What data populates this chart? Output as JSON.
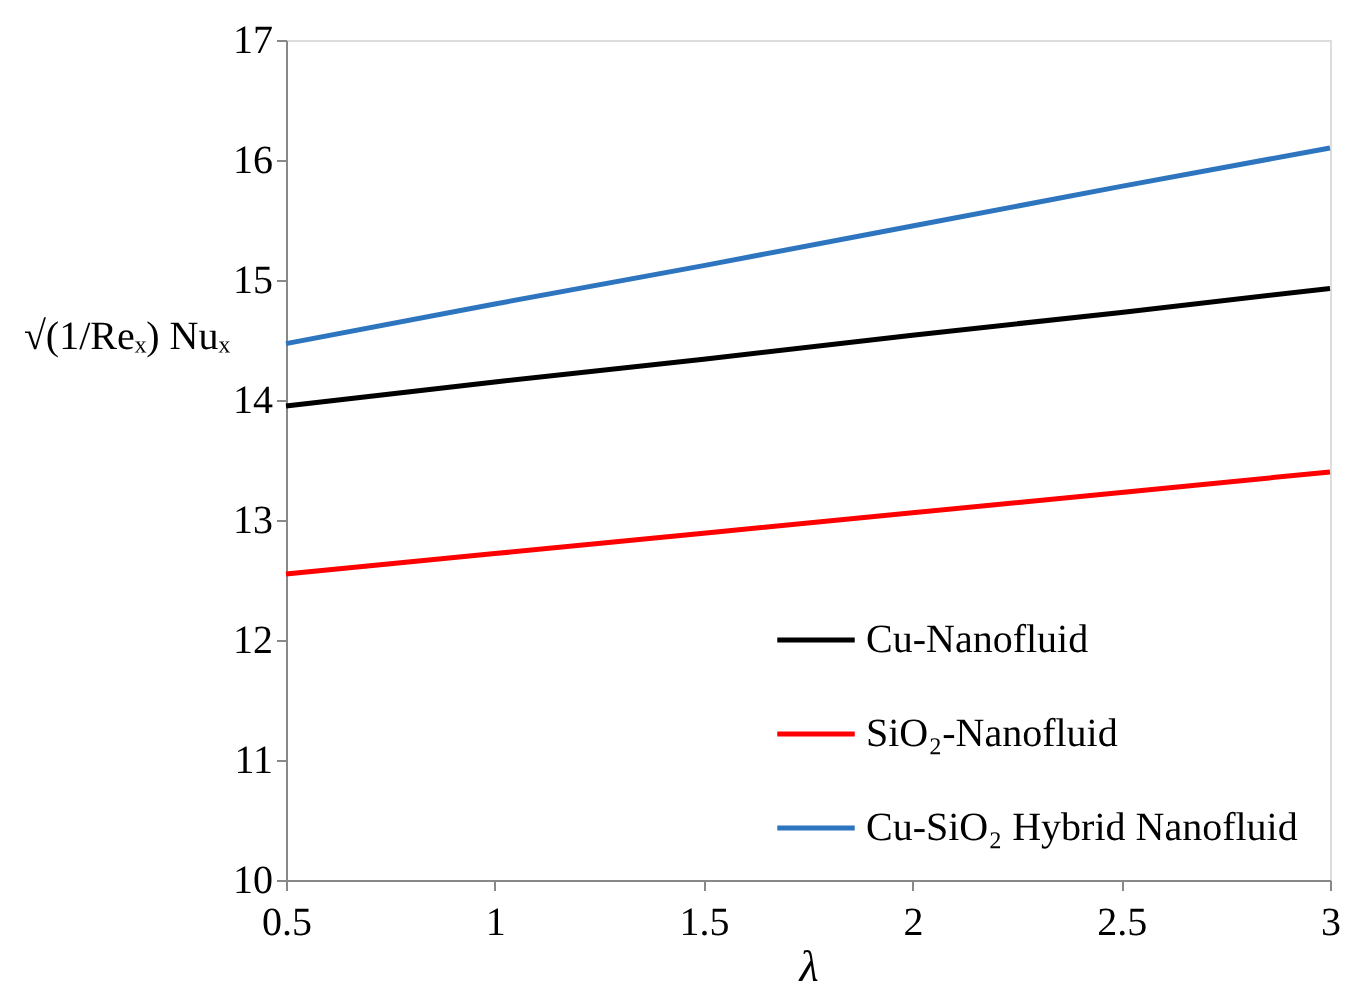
{
  "chart_data": {
    "type": "line",
    "xlabel": "λ",
    "ylabel": "√(1/Reₓ) Nuₓ",
    "x": [
      0.5,
      1,
      1.5,
      2,
      2.5,
      3
    ],
    "series": [
      {
        "name": "Cu-Nanofluid",
        "color": "#000000",
        "values": [
          13.95,
          14.15,
          14.34,
          14.54,
          14.73,
          14.93
        ]
      },
      {
        "name": "SiO₂-Nanofluid",
        "color": "#ff0000",
        "values": [
          12.55,
          12.72,
          12.89,
          13.06,
          13.23,
          13.4
        ]
      },
      {
        "name": "Cu-SiO₂ Hybrid Nanofluid",
        "color": "#2e75c0",
        "values": [
          14.47,
          14.8,
          15.12,
          15.45,
          15.78,
          16.1
        ]
      }
    ],
    "xlim": [
      0.5,
      3
    ],
    "xticks": [
      0.5,
      1,
      1.5,
      2,
      2.5,
      3
    ],
    "ylim": [
      10,
      17
    ],
    "yticks": [
      10,
      11,
      12,
      13,
      14,
      15,
      16,
      17
    ],
    "grid": false,
    "legend": "bottom right",
    "marker": "none",
    "line_style": "solid"
  }
}
